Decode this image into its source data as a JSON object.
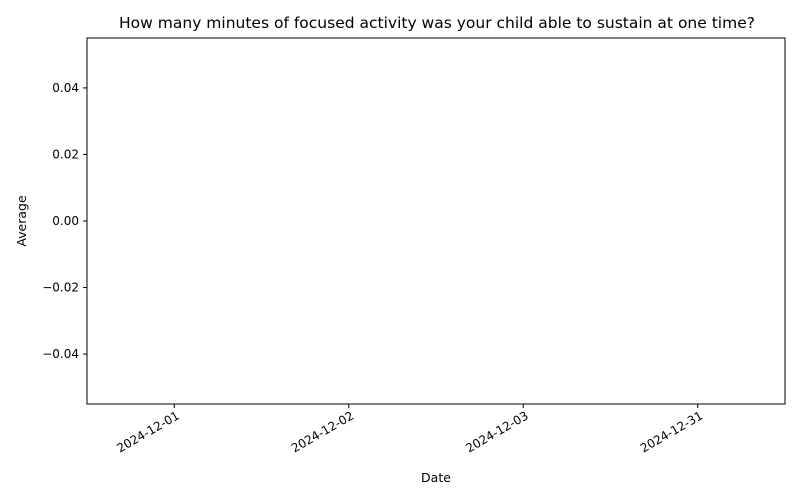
{
  "chart_data": {
    "type": "line",
    "title": "How many minutes of focused activity was your child able to sustain at one time?",
    "xlabel": "Date",
    "ylabel": "Average",
    "categories": [
      "2024-12-01",
      "2024-12-02",
      "2024-12-03",
      "2024-12-31"
    ],
    "x_tick_labels": [
      "2024-12-01",
      "2024-12-02",
      "2024-12-03",
      "2024-12-31"
    ],
    "y_ticks": [
      -0.04,
      -0.02,
      0.0,
      0.02,
      0.04
    ],
    "y_tick_labels": [
      "−0.04",
      "−0.02",
      "0.00",
      "0.02",
      "0.04"
    ],
    "ylim": [
      -0.055,
      0.055
    ],
    "series": [],
    "grid": false,
    "line_color": "#000000"
  }
}
